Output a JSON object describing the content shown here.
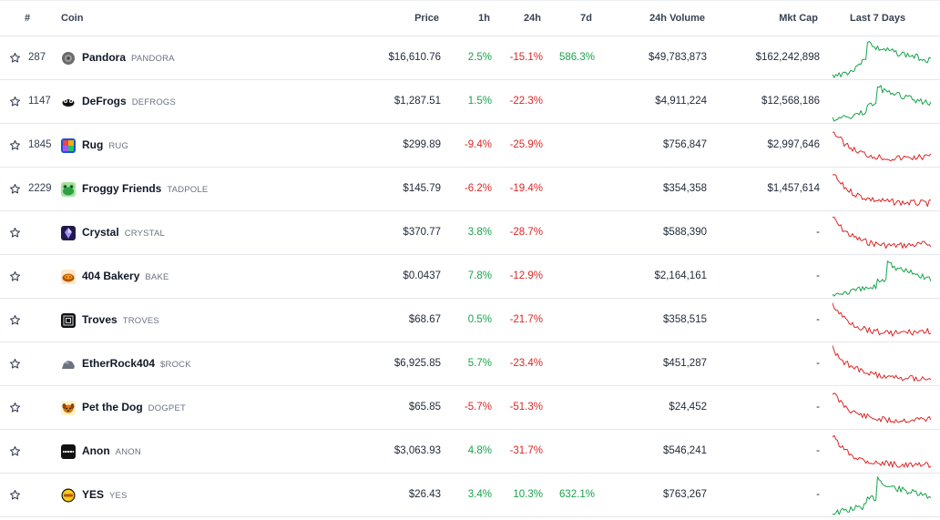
{
  "header": {
    "rank": "#",
    "coin": "Coin",
    "price": "Price",
    "h1": "1h",
    "h24": "24h",
    "d7": "7d",
    "volume": "24h Volume",
    "mcap": "Mkt Cap",
    "last7": "Last 7 Days"
  },
  "colors": {
    "up": "#16a34a",
    "down": "#dc2626"
  },
  "rows": [
    {
      "rank": "287",
      "name": "Pandora",
      "symbol": "PANDORA",
      "price": "$16,610.76",
      "h1": "2.5%",
      "h24": "-15.1%",
      "d7": "586.3%",
      "volume": "$49,783,873",
      "mcap": "$162,242,898",
      "trend": "up",
      "icon": "pandora-icon"
    },
    {
      "rank": "1147",
      "name": "DeFrogs",
      "symbol": "DEFROGS",
      "price": "$1,287.51",
      "h1": "1.5%",
      "h24": "-22.3%",
      "d7": "",
      "volume": "$4,911,224",
      "mcap": "$12,568,186",
      "trend": "up",
      "icon": "defrogs-icon"
    },
    {
      "rank": "1845",
      "name": "Rug",
      "symbol": "RUG",
      "price": "$299.89",
      "h1": "-9.4%",
      "h24": "-25.9%",
      "d7": "",
      "volume": "$756,847",
      "mcap": "$2,997,646",
      "trend": "down",
      "icon": "rug-icon"
    },
    {
      "rank": "2229",
      "name": "Froggy Friends",
      "symbol": "TADPOLE",
      "price": "$145.79",
      "h1": "-6.2%",
      "h24": "-19.4%",
      "d7": "",
      "volume": "$354,358",
      "mcap": "$1,457,614",
      "trend": "down",
      "icon": "froggy-icon"
    },
    {
      "rank": "",
      "name": "Crystal",
      "symbol": "CRYSTAL",
      "price": "$370.77",
      "h1": "3.8%",
      "h24": "-28.7%",
      "d7": "",
      "volume": "$588,390",
      "mcap": "-",
      "trend": "down",
      "icon": "crystal-icon"
    },
    {
      "rank": "",
      "name": "404 Bakery",
      "symbol": "BAKE",
      "price": "$0.0437",
      "h1": "7.8%",
      "h24": "-12.9%",
      "d7": "",
      "volume": "$2,164,161",
      "mcap": "-",
      "trend": "up",
      "icon": "bakery-icon"
    },
    {
      "rank": "",
      "name": "Troves",
      "symbol": "TROVES",
      "price": "$68.67",
      "h1": "0.5%",
      "h24": "-21.7%",
      "d7": "",
      "volume": "$358,515",
      "mcap": "-",
      "trend": "down",
      "icon": "troves-icon"
    },
    {
      "rank": "",
      "name": "EtherRock404",
      "symbol": "$ROCK",
      "price": "$6,925.85",
      "h1": "5.7%",
      "h24": "-23.4%",
      "d7": "",
      "volume": "$451,287",
      "mcap": "-",
      "trend": "down",
      "icon": "rock-icon"
    },
    {
      "rank": "",
      "name": "Pet the Dog",
      "symbol": "DOGPET",
      "price": "$65.85",
      "h1": "-5.7%",
      "h24": "-51.3%",
      "d7": "",
      "volume": "$24,452",
      "mcap": "-",
      "trend": "down",
      "icon": "dog-icon"
    },
    {
      "rank": "",
      "name": "Anon",
      "symbol": "ANON",
      "price": "$3,063.93",
      "h1": "4.8%",
      "h24": "-31.7%",
      "d7": "",
      "volume": "$546,241",
      "mcap": "-",
      "trend": "down",
      "icon": "anon-icon"
    },
    {
      "rank": "",
      "name": "YES",
      "symbol": "YES",
      "price": "$26.43",
      "h1": "3.4%",
      "h24": "10.3%",
      "d7": "632.1%",
      "volume": "$763,267",
      "mcap": "-",
      "trend": "up",
      "icon": "yes-icon"
    }
  ]
}
